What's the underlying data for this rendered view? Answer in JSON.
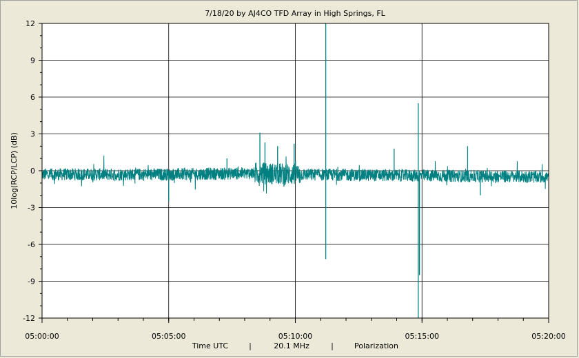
{
  "chart_data": {
    "type": "line",
    "title": "7/18/20  by  AJ4CO TFD Array  in  High Springs, FL",
    "ylabel": "10log(RCP/LCP) (dB)",
    "xlabel_parts": [
      "Time UTC",
      "|",
      "20.1 MHz",
      "|",
      "Polarization"
    ],
    "ylim": [
      -12,
      12
    ],
    "yticks": [
      "12",
      "9",
      "6",
      "3",
      "0",
      "-3",
      "-6",
      "-9",
      "-12"
    ],
    "xlim_minutes": [
      0,
      20
    ],
    "xticks": [
      "05:00:00",
      "05:05:00",
      "05:10:00",
      "05:15:00",
      "05:20:00"
    ],
    "grid": true,
    "series": [
      {
        "color": "#008080",
        "baseline": [
          [
            0,
            -0.3
          ],
          [
            5,
            -0.3
          ],
          [
            8.5,
            -0.2
          ],
          [
            10,
            -0.3
          ],
          [
            15,
            -0.4
          ],
          [
            20,
            -0.5
          ]
        ],
        "noise_amplitude": 0.5,
        "features": [
          {
            "x": 5.0,
            "y": -2.5
          },
          {
            "x": 7.3,
            "y": 1.0
          },
          {
            "x": 8.6,
            "y": 3.1
          },
          {
            "x": 8.8,
            "y": 2.3
          },
          {
            "x": 9.3,
            "y": 2.0
          },
          {
            "x": 9.55,
            "y": -1.3
          },
          {
            "x": 9.95,
            "y": 2.2
          },
          {
            "x": 11.2,
            "y": 12
          },
          {
            "x": 11.2,
            "y": -7.2
          },
          {
            "x": 13.9,
            "y": 1.8
          },
          {
            "x": 14.85,
            "y": 5.5
          },
          {
            "x": 14.85,
            "y": -12
          },
          {
            "x": 14.9,
            "y": -8.5
          },
          {
            "x": 16.8,
            "y": 2.0
          },
          {
            "x": 17.3,
            "y": -2.0
          }
        ]
      }
    ]
  }
}
